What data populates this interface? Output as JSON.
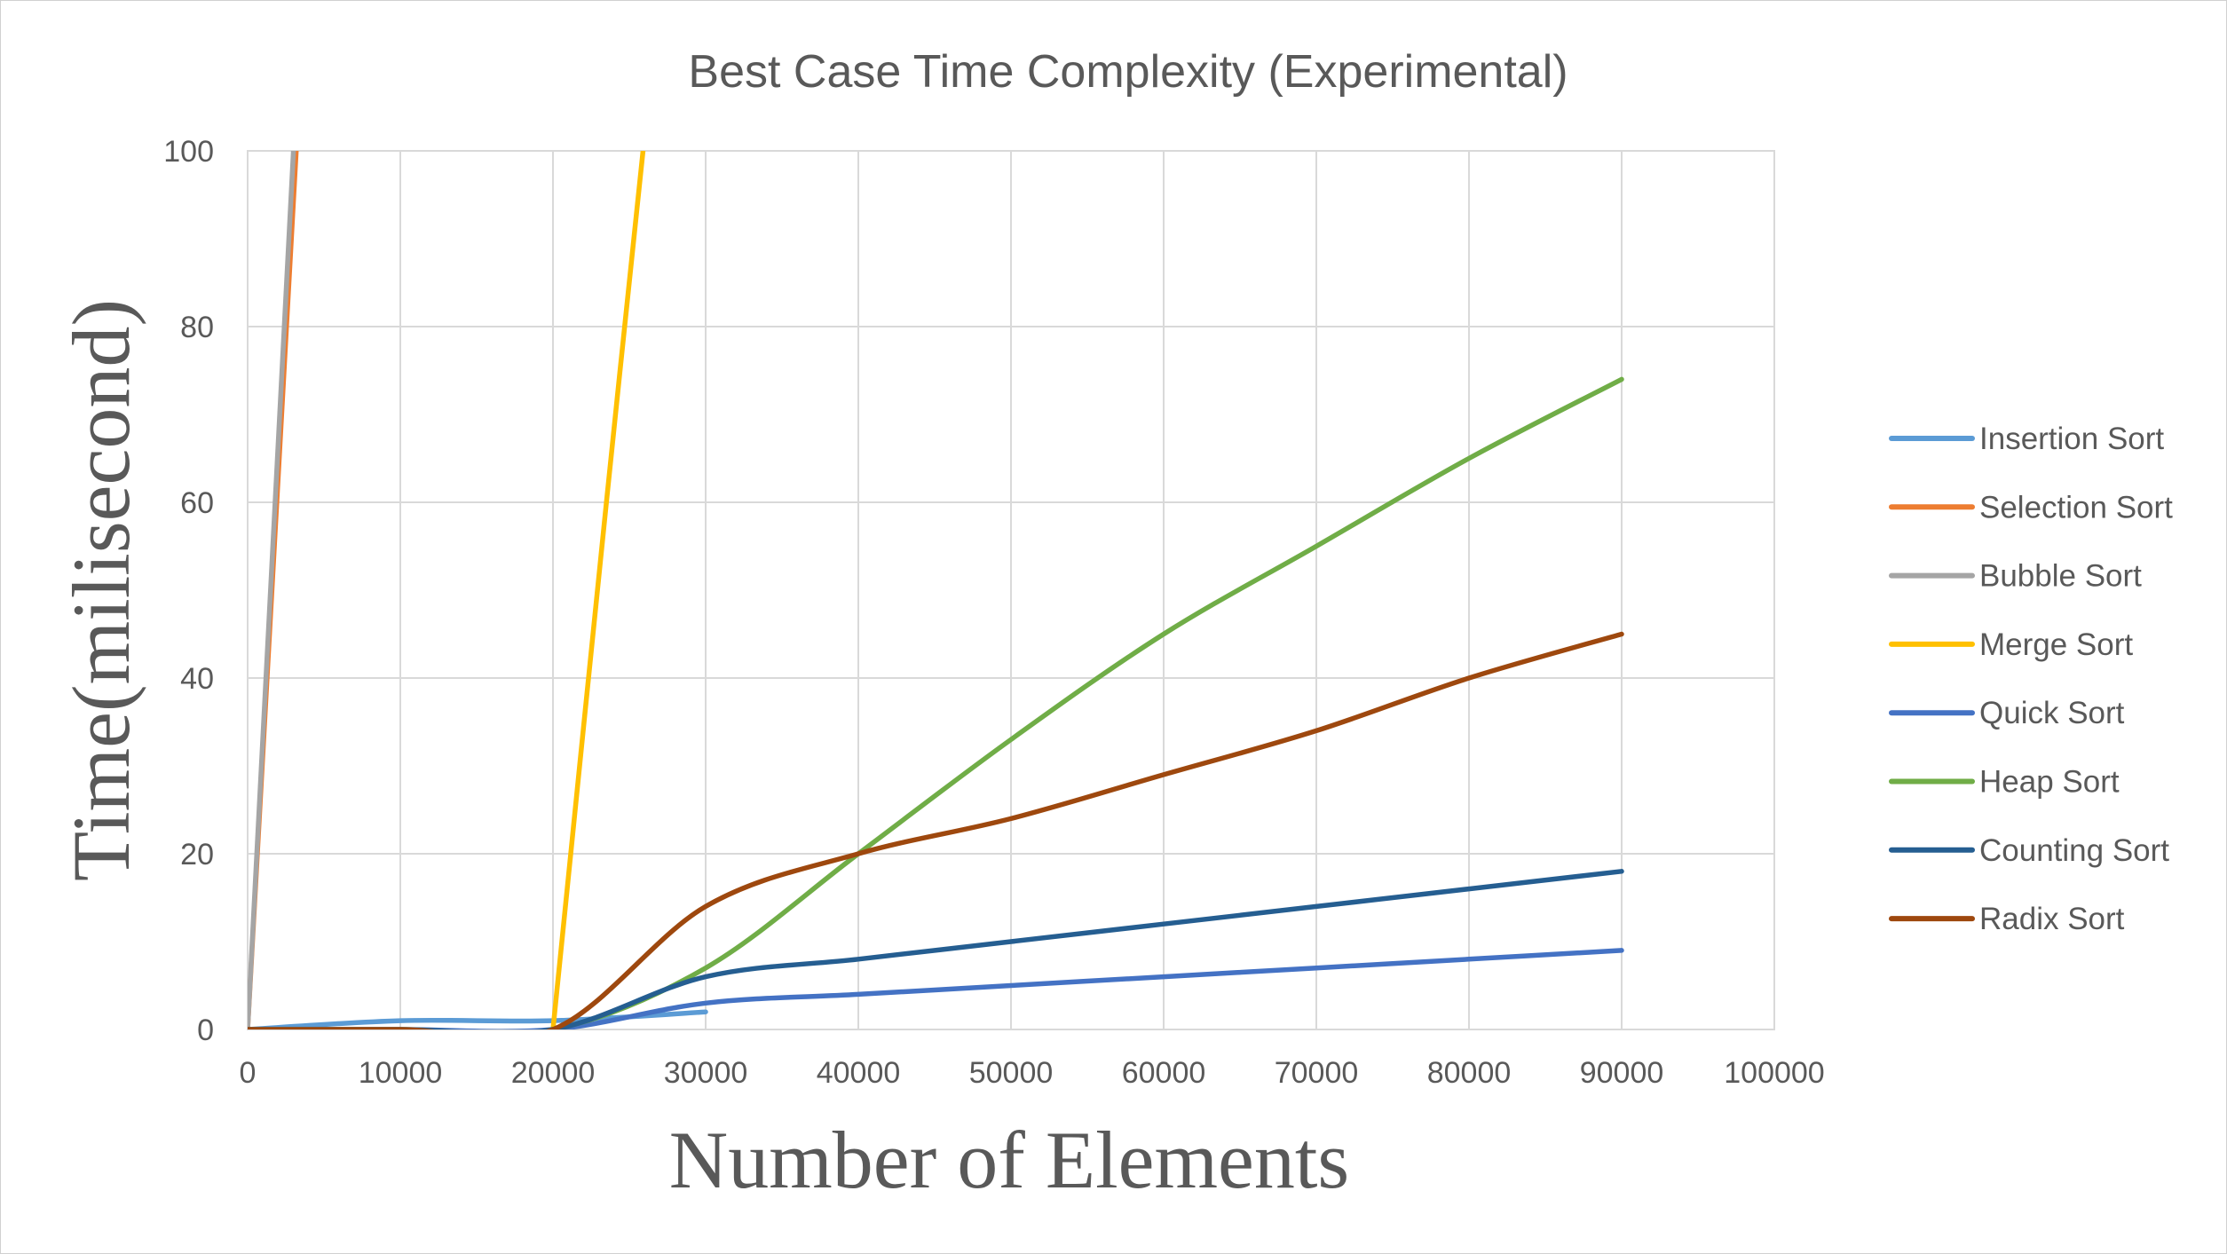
{
  "chart_data": {
    "type": "line",
    "title": "Best Case Time Complexity (Experimental)",
    "xlabel": "Number of Elements",
    "ylabel": "Time(milisecond)",
    "xlim": [
      0,
      100000
    ],
    "ylim": [
      0,
      100
    ],
    "x_ticks": [
      "0",
      "10000",
      "20000",
      "30000",
      "40000",
      "50000",
      "60000",
      "70000",
      "80000",
      "90000",
      "100000"
    ],
    "y_ticks": [
      "0",
      "20",
      "40",
      "60",
      "80",
      "100"
    ],
    "grid": true,
    "legend_position": "right",
    "series": [
      {
        "name": "Insertion Sort",
        "color": "#5B9BD5",
        "points": [
          [
            0,
            0
          ],
          [
            10000,
            1
          ],
          [
            20000,
            1
          ],
          [
            30000,
            2
          ]
        ]
      },
      {
        "name": "Selection Sort",
        "color": "#ED7D31",
        "points": [
          [
            0,
            0
          ],
          [
            3500,
            110
          ]
        ]
      },
      {
        "name": "Bubble Sort",
        "color": "#A5A5A5",
        "points": [
          [
            0,
            0
          ],
          [
            3300,
            110
          ]
        ]
      },
      {
        "name": "Merge Sort",
        "color": "#FFC000",
        "points": [
          [
            20000,
            0
          ],
          [
            23500,
            60
          ],
          [
            26500,
            110
          ]
        ]
      },
      {
        "name": "Quick Sort",
        "color": "#4472C4",
        "points": [
          [
            0,
            0
          ],
          [
            10000,
            0
          ],
          [
            20000,
            0
          ],
          [
            30000,
            3
          ],
          [
            40000,
            4
          ],
          [
            50000,
            5
          ],
          [
            60000,
            6
          ],
          [
            70000,
            7
          ],
          [
            80000,
            8
          ],
          [
            90000,
            9
          ]
        ]
      },
      {
        "name": "Heap Sort",
        "color": "#70AD47",
        "points": [
          [
            0,
            0
          ],
          [
            10000,
            0
          ],
          [
            20000,
            0
          ],
          [
            30000,
            7
          ],
          [
            40000,
            20
          ],
          [
            50000,
            33
          ],
          [
            60000,
            45
          ],
          [
            70000,
            55
          ],
          [
            80000,
            65
          ],
          [
            90000,
            74
          ]
        ]
      },
      {
        "name": "Counting Sort",
        "color": "#255E91",
        "points": [
          [
            0,
            0
          ],
          [
            10000,
            0
          ],
          [
            20000,
            0
          ],
          [
            30000,
            6
          ],
          [
            40000,
            8
          ],
          [
            50000,
            10
          ],
          [
            60000,
            12
          ],
          [
            70000,
            14
          ],
          [
            80000,
            16
          ],
          [
            90000,
            18
          ]
        ]
      },
      {
        "name": "Radix Sort",
        "color": "#9E480E",
        "points": [
          [
            0,
            0
          ],
          [
            10000,
            0
          ],
          [
            20000,
            0
          ],
          [
            30000,
            14
          ],
          [
            40000,
            20
          ],
          [
            50000,
            24
          ],
          [
            60000,
            29
          ],
          [
            70000,
            34
          ],
          [
            80000,
            40
          ],
          [
            90000,
            45
          ]
        ]
      }
    ]
  }
}
